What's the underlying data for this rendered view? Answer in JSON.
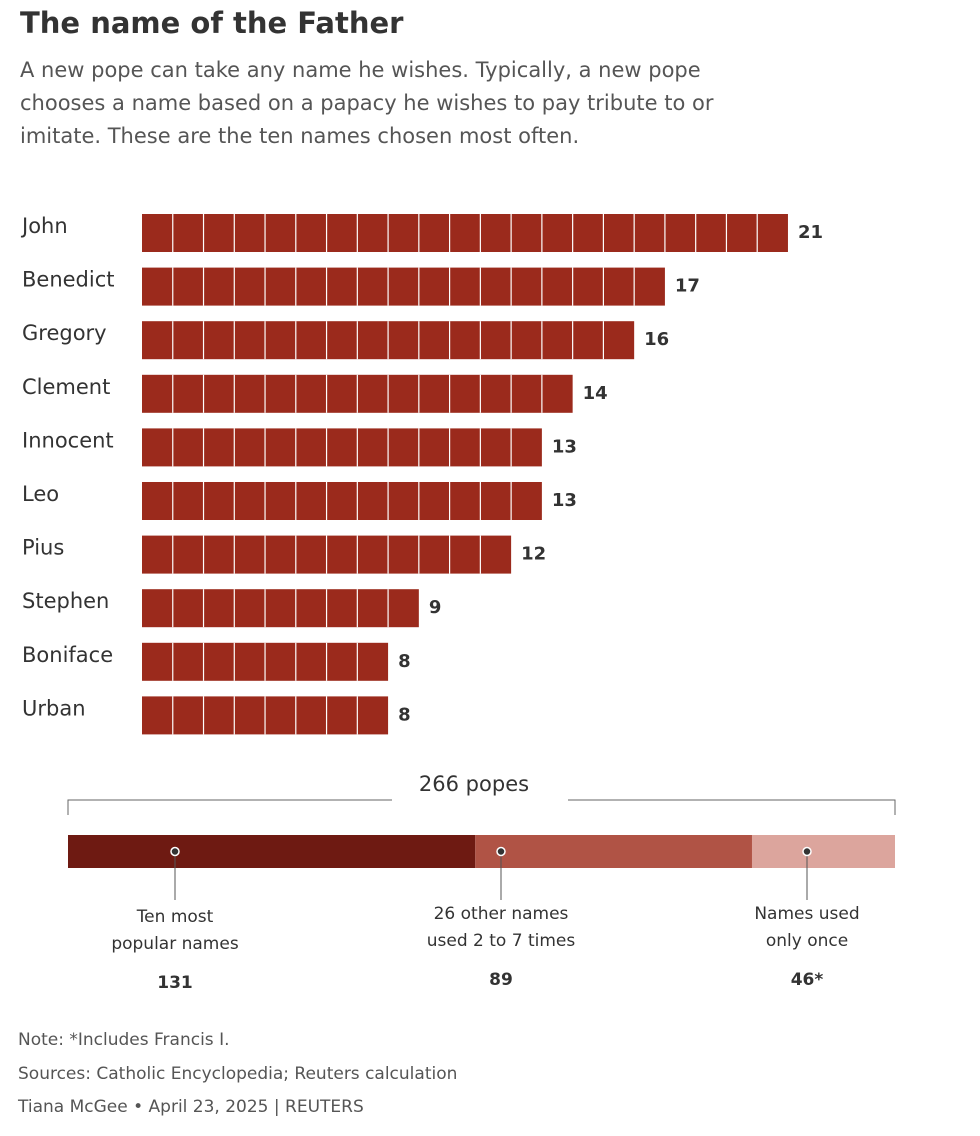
{
  "chart_data": [
    {
      "type": "unit_bar",
      "title": "The name of the Father",
      "subtitle": "A new pope can take any name he wishes. Typically, a new pope chooses a name based on a papacy he wishes to pay tribute to or imitate. These are the ten names chosen most often.",
      "categories": [
        "John",
        "Benedict",
        "Gregory",
        "Clement",
        "Innocent",
        "Leo",
        "Pius",
        "Stephen",
        "Boniface",
        "Urban"
      ],
      "values": [
        21,
        17,
        16,
        14,
        13,
        13,
        12,
        9,
        8,
        8
      ],
      "color": "#9b2a1c"
    },
    {
      "type": "stacked_bar",
      "annotation": "266 popes",
      "categories": [
        "Ten most popular names",
        "26 other names used 2 to 7 times",
        "Names used only once"
      ],
      "values": [
        131,
        89,
        46
      ],
      "value_labels": [
        "131",
        "89",
        "46*"
      ],
      "colors": [
        "#6e1a12",
        "#b05345",
        "#dca59d"
      ]
    }
  ],
  "footer": {
    "note": "Note: *Includes Francis I.",
    "sources": "Sources: Catholic Encyclopedia; Reuters calculation",
    "credit": "Tiana McGee • April 23, 2025 | REUTERS"
  }
}
